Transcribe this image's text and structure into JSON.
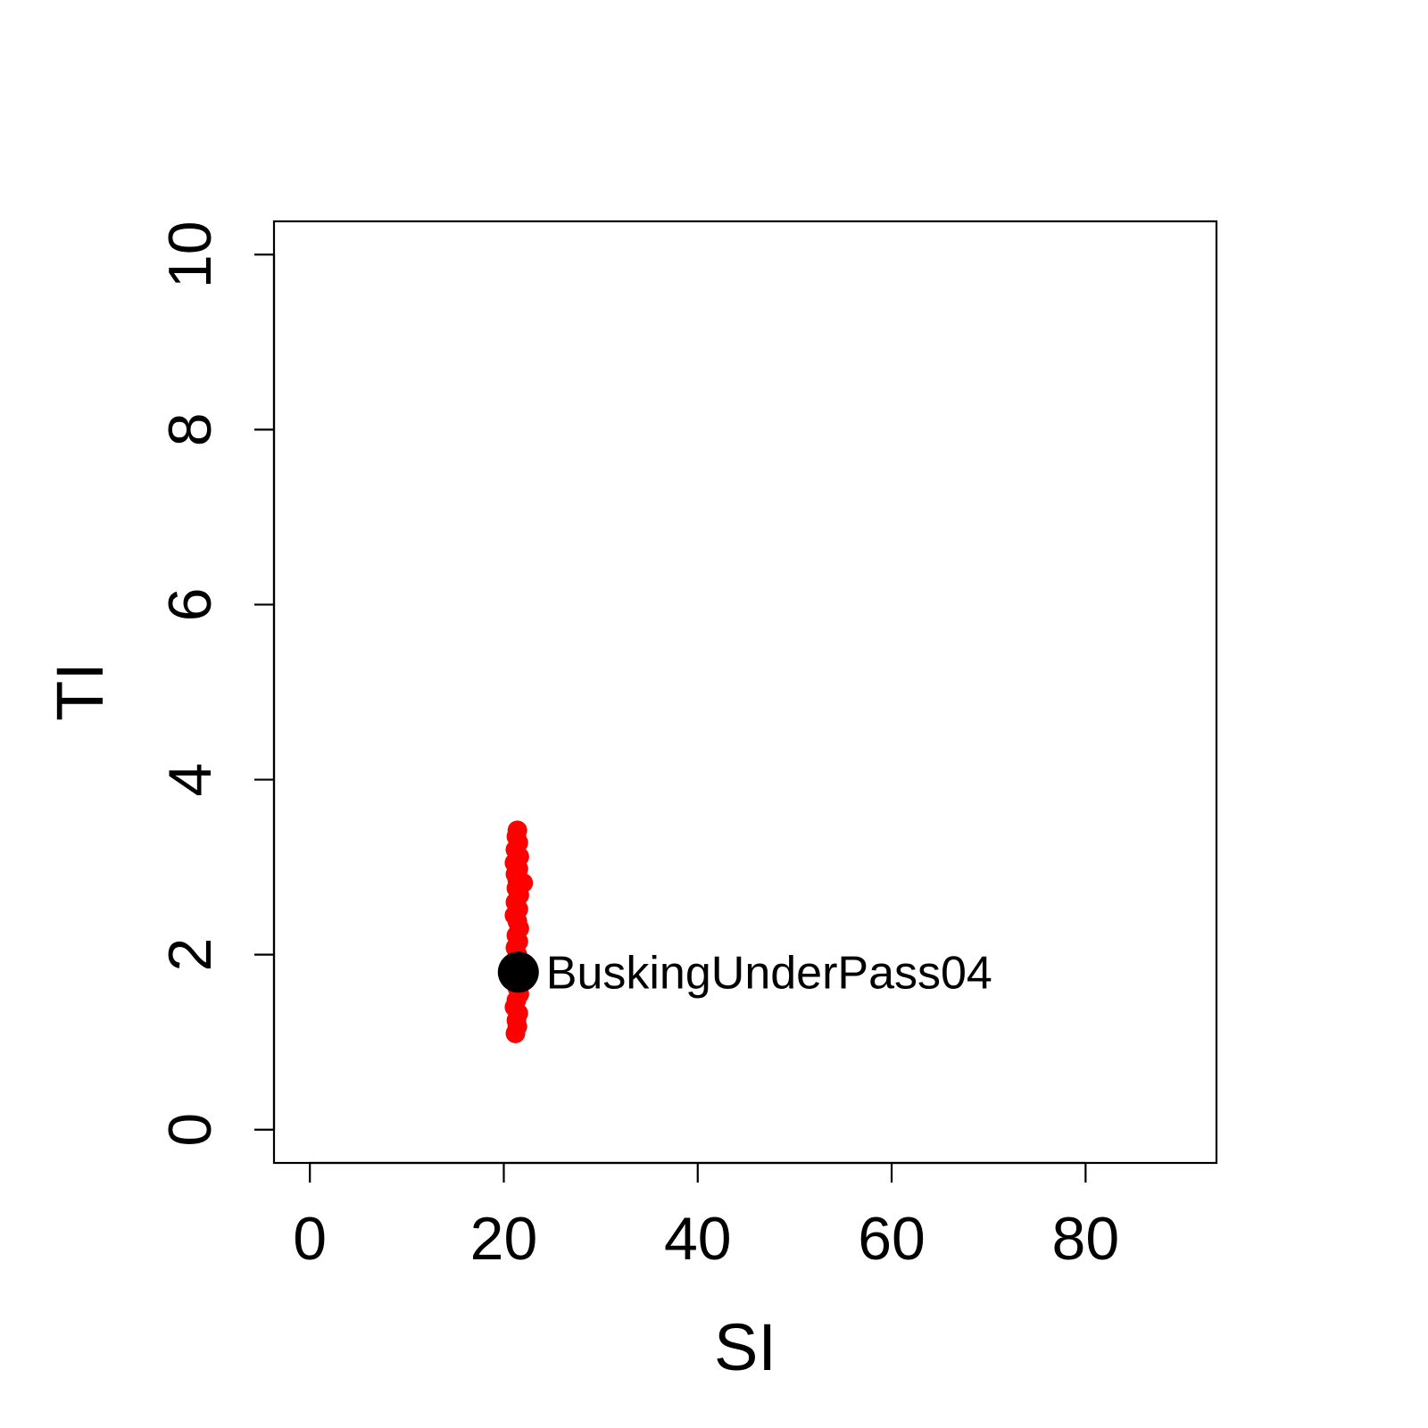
{
  "chart_data": {
    "type": "scatter",
    "title": "",
    "xlabel": "SI",
    "ylabel": "TI",
    "xlim": [
      -3.7,
      93.5
    ],
    "ylim": [
      -0.38,
      10.38
    ],
    "x_ticks": [
      0,
      20,
      40,
      60,
      80
    ],
    "y_ticks": [
      0,
      2,
      4,
      6,
      8,
      10
    ],
    "grid": false,
    "legend": "none",
    "series": [
      {
        "color": "#ff0000",
        "marker": "filled-circle",
        "points": [
          {
            "x": 21.4,
            "y": 3.42
          },
          {
            "x": 21.3,
            "y": 3.35
          },
          {
            "x": 21.5,
            "y": 3.28
          },
          {
            "x": 21.2,
            "y": 3.2
          },
          {
            "x": 21.6,
            "y": 3.12
          },
          {
            "x": 21.1,
            "y": 3.05
          },
          {
            "x": 21.5,
            "y": 2.98
          },
          {
            "x": 21.2,
            "y": 2.92
          },
          {
            "x": 21.4,
            "y": 2.85
          },
          {
            "x": 22.0,
            "y": 2.82
          },
          {
            "x": 21.3,
            "y": 2.76
          },
          {
            "x": 21.6,
            "y": 2.68
          },
          {
            "x": 21.2,
            "y": 2.6
          },
          {
            "x": 21.5,
            "y": 2.52
          },
          {
            "x": 21.1,
            "y": 2.45
          },
          {
            "x": 21.4,
            "y": 2.38
          },
          {
            "x": 21.6,
            "y": 2.3
          },
          {
            "x": 21.3,
            "y": 2.22
          },
          {
            "x": 21.5,
            "y": 2.15
          },
          {
            "x": 21.2,
            "y": 2.08
          },
          {
            "x": 21.4,
            "y": 2.0
          },
          {
            "x": 21.6,
            "y": 1.92
          },
          {
            "x": 21.3,
            "y": 1.85
          },
          {
            "x": 21.5,
            "y": 1.78
          },
          {
            "x": 21.2,
            "y": 1.7
          },
          {
            "x": 21.4,
            "y": 1.62
          },
          {
            "x": 21.6,
            "y": 1.55
          },
          {
            "x": 21.3,
            "y": 1.48
          },
          {
            "x": 21.1,
            "y": 1.4
          },
          {
            "x": 21.5,
            "y": 1.33
          },
          {
            "x": 21.3,
            "y": 1.25
          },
          {
            "x": 21.4,
            "y": 1.18
          },
          {
            "x": 21.2,
            "y": 1.1
          }
        ]
      },
      {
        "color": "#000000",
        "marker": "filled-circle",
        "points": [
          {
            "x": 21.5,
            "y": 1.8,
            "label": "BuskingUnderPass04"
          }
        ]
      }
    ]
  }
}
